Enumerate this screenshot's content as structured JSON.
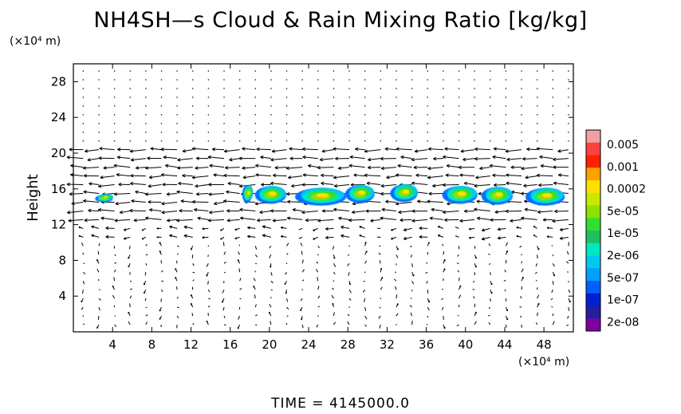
{
  "chart_data": {
    "type": "heatmap",
    "title": "NH4SH—s Cloud & Rain Mixing Ratio [kg/kg]",
    "ylabel": "Height",
    "y_unit": "(×10⁴ m)",
    "x_unit": "(×10⁴ m)",
    "xlim": [
      0,
      51
    ],
    "ylim": [
      0,
      30
    ],
    "x_ticks": [
      4,
      8,
      12,
      16,
      20,
      24,
      28,
      32,
      36,
      40,
      44,
      48
    ],
    "y_ticks": [
      4,
      8,
      12,
      16,
      20,
      24,
      28
    ],
    "colorbar": {
      "labels": [
        "0.005",
        "0.001",
        "0.0002",
        "5e-05",
        "1e-05",
        "2e-06",
        "5e-07",
        "1e-07",
        "2e-08"
      ],
      "colors": [
        "#f0a0a0",
        "#ff4040",
        "#ff2000",
        "#ffa000",
        "#ffe000",
        "#c8e800",
        "#90e000",
        "#30e030",
        "#20c060",
        "#00e8c0",
        "#00c8f0",
        "#00a0ff",
        "#0060ff",
        "#0020d0",
        "#2020a0",
        "#8000a0"
      ]
    },
    "cloud_features": [
      {
        "x": 3.2,
        "y": 15.0
      },
      {
        "x": 17.8,
        "y": 15.5
      },
      {
        "x": 20.2,
        "y": 15.4
      },
      {
        "x": 25.3,
        "y": 15.2
      },
      {
        "x": 29.3,
        "y": 15.5
      },
      {
        "x": 33.8,
        "y": 15.6
      },
      {
        "x": 39.5,
        "y": 15.4
      },
      {
        "x": 43.3,
        "y": 15.3
      },
      {
        "x": 48.2,
        "y": 15.2
      }
    ],
    "wind_vectors_shown": true,
    "time_label": "TIME  =  4145000.0"
  }
}
